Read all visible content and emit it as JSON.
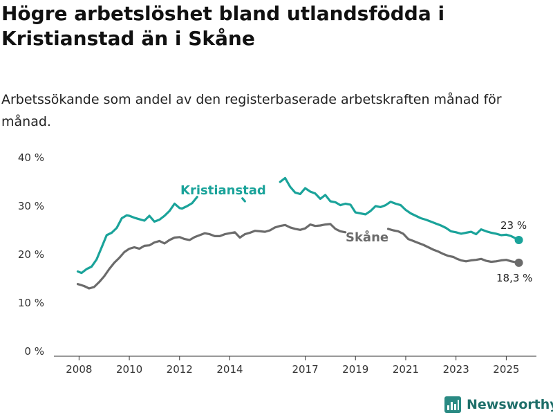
{
  "title": "Högre arbetslöshet bland utlandsfödda i Kristianstad än i Skåne",
  "subtitle": "Arbetssökande som andel av den registerbaserade arbetskraften månad för månad.",
  "brand": {
    "name": "Newsworthy",
    "icon": "newsworthy-bar-chart-icon"
  },
  "colors": {
    "kristianstad": "#1aa39a",
    "skane": "#6b6b6b",
    "axis": "#333333"
  },
  "chart_data": {
    "type": "line",
    "y_ticks": [
      "0 %",
      "10 %",
      "20 %",
      "30 %",
      "40 %"
    ],
    "ylim": [
      0,
      40
    ],
    "x_ticks": [
      "2008",
      "2010",
      "2012",
      "2014",
      "2017",
      "2019",
      "2021",
      "2023",
      "2025"
    ],
    "x_tick_values": [
      2008,
      2010,
      2012,
      2014,
      2017,
      2019,
      2021,
      2023,
      2025
    ],
    "xlim": [
      2007.0,
      2026.2
    ],
    "grid": false,
    "series": [
      {
        "name": "Kristianstad",
        "color": "#1aa39a",
        "end_label": "23 %",
        "x": [
          2007.95,
          2008.1,
          2008.3,
          2008.5,
          2008.7,
          2008.9,
          2009.1,
          2009.3,
          2009.5,
          2009.7,
          2009.9,
          2010.0,
          2010.2,
          2010.4,
          2010.6,
          2010.8,
          2011.0,
          2011.2,
          2011.4,
          2011.6,
          2011.8,
          2012.0,
          2012.1,
          2012.3,
          2012.5,
          2012.7,
          null,
          2014.5,
          2014.6,
          null,
          2016.0,
          2016.2,
          2016.4,
          2016.6,
          2016.8,
          2017.0,
          2017.2,
          2017.4,
          2017.6,
          2017.8,
          2018.0,
          2018.2,
          2018.4,
          2018.6,
          2018.8,
          2019.0,
          2019.2,
          2019.4,
          2019.6,
          2019.8,
          2020.0,
          2020.2,
          2020.4,
          2020.6,
          2020.8,
          2021.0,
          2021.2,
          2021.4,
          2021.6,
          2021.8,
          2022.0,
          2022.2,
          2022.4,
          2022.6,
          2022.8,
          2023.0,
          2023.2,
          2023.4,
          2023.6,
          2023.8,
          2024.0,
          2024.2,
          2024.4,
          2024.6,
          2024.8,
          2025.0,
          2025.2,
          2025.5
        ],
        "y": [
          16.5,
          16.2,
          17.0,
          17.5,
          19.0,
          21.5,
          24.0,
          24.5,
          25.5,
          27.5,
          28.1,
          28.0,
          27.6,
          27.3,
          27.0,
          28.0,
          26.8,
          27.2,
          28.0,
          29.0,
          30.5,
          29.6,
          29.5,
          30.0,
          30.6,
          31.9,
          null,
          31.6,
          31.0,
          null,
          35.0,
          35.8,
          34.0,
          32.8,
          32.5,
          33.7,
          33.0,
          32.6,
          31.5,
          32.3,
          31.0,
          30.8,
          30.2,
          30.5,
          30.3,
          28.7,
          28.5,
          28.3,
          29.0,
          30.0,
          29.8,
          30.2,
          30.9,
          30.5,
          30.2,
          29.2,
          28.5,
          28.0,
          27.5,
          27.2,
          26.8,
          26.4,
          26.0,
          25.5,
          24.8,
          24.6,
          24.3,
          24.5,
          24.7,
          24.2,
          25.2,
          24.8,
          24.5,
          24.3,
          24.0,
          24.1,
          23.8,
          23.0
        ]
      },
      {
        "name": "Skåne",
        "color": "#6b6b6b",
        "end_label": "18,3 %",
        "x": [
          2007.95,
          2008.2,
          2008.4,
          2008.6,
          2008.8,
          2009.0,
          2009.2,
          2009.4,
          2009.6,
          2009.8,
          2010.0,
          2010.2,
          2010.4,
          2010.6,
          2010.8,
          2011.0,
          2011.2,
          2011.4,
          2011.6,
          2011.8,
          2012.0,
          2012.2,
          2012.4,
          2012.6,
          2012.8,
          2013.0,
          2013.2,
          2013.4,
          2013.6,
          2013.8,
          2014.0,
          2014.2,
          2014.4,
          2014.6,
          2014.8,
          2015.0,
          2015.2,
          2015.4,
          2015.6,
          2015.8,
          2016.0,
          2016.2,
          2016.4,
          2016.6,
          2016.8,
          2017.0,
          2017.2,
          2017.4,
          2017.6,
          2017.8,
          2018.0,
          2018.2,
          2018.4,
          2018.6,
          null,
          2020.3,
          2020.5,
          2020.7,
          2020.9,
          2021.1,
          2021.3,
          2021.5,
          2021.7,
          2021.9,
          2022.1,
          2022.3,
          2022.5,
          2022.7,
          2022.9,
          2023.0,
          2023.2,
          2023.4,
          2023.6,
          2023.8,
          2024.0,
          2024.2,
          2024.4,
          2024.6,
          2024.8,
          2025.0,
          2025.2,
          2025.5
        ],
        "y": [
          13.9,
          13.5,
          13.0,
          13.3,
          14.3,
          15.5,
          17.0,
          18.3,
          19.3,
          20.5,
          21.2,
          21.5,
          21.2,
          21.8,
          21.9,
          22.5,
          22.8,
          22.3,
          23.0,
          23.5,
          23.6,
          23.2,
          23.0,
          23.6,
          24.0,
          24.4,
          24.2,
          23.8,
          23.8,
          24.2,
          24.4,
          24.6,
          23.5,
          24.2,
          24.5,
          24.9,
          24.8,
          24.7,
          25.0,
          25.6,
          25.9,
          26.1,
          25.6,
          25.3,
          25.1,
          25.4,
          26.2,
          25.9,
          26.0,
          26.2,
          26.3,
          25.3,
          24.8,
          24.6,
          null,
          25.3,
          25.0,
          24.8,
          24.3,
          23.2,
          22.8,
          22.4,
          22.0,
          21.5,
          21.0,
          20.6,
          20.1,
          19.7,
          19.5,
          19.2,
          18.8,
          18.6,
          18.8,
          18.9,
          19.1,
          18.7,
          18.5,
          18.6,
          18.8,
          18.9,
          18.6,
          18.3
        ]
      }
    ]
  }
}
